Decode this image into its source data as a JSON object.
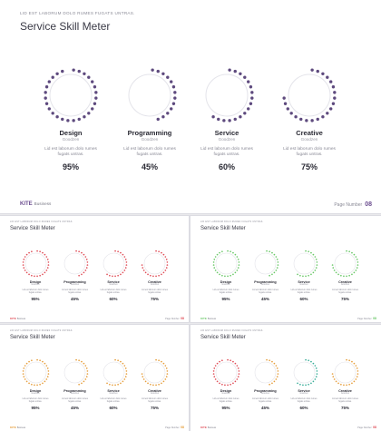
{
  "header": {
    "subtitle": "LID EST LABORUM DOLO RUMES FUGATS UNTRAS.",
    "title": "Service Skill Meter"
  },
  "footer": {
    "brand_primary": "KITE",
    "brand_secondary": "Business",
    "page_label": "Page Number",
    "page_number": "08"
  },
  "meters": [
    {
      "label": "Design",
      "sublabel": "Goodzen",
      "description": "Lid est laborum dolo rumes\nfugats untras.",
      "percent_text": "95%",
      "value": 0.95
    },
    {
      "label": "Programming",
      "sublabel": "Goodzen",
      "description": "Lid est laborum dolo rumes\nfugats untras.",
      "percent_text": "45%",
      "value": 0.45
    },
    {
      "label": "Service",
      "sublabel": "Goodzen",
      "description": "Lid est laborum dolo rumes\nfugats untras.",
      "percent_text": "60%",
      "value": 0.6
    },
    {
      "label": "Creative",
      "sublabel": "Goodzen",
      "description": "Lid est laborum dolo rumes\nfugats untras.",
      "percent_text": "75%",
      "value": 0.75
    }
  ],
  "variants": [
    {
      "theme": "purple",
      "brand_color": "#6b4d8f",
      "dot_colors": [
        "#5e4a7e",
        "#5e4a7e",
        "#5e4a7e",
        "#5e4a7e"
      ]
    },
    {
      "theme": "red",
      "brand_color": "#e0505a",
      "dot_colors": [
        "#e0505a",
        "#e0505a",
        "#e0505a",
        "#e0505a"
      ]
    },
    {
      "theme": "green",
      "brand_color": "#6cc86a",
      "dot_colors": [
        "#6cc86a",
        "#6cc86a",
        "#6cc86a",
        "#6cc86a"
      ]
    },
    {
      "theme": "orange",
      "brand_color": "#e6a040",
      "dot_colors": [
        "#e6a040",
        "#e6a040",
        "#e6a040",
        "#e6a040"
      ]
    },
    {
      "theme": "mixed",
      "brand_color": "#e0505a",
      "dot_colors": [
        "#e0505a",
        "#e6a040",
        "#3dae9a",
        "#e6a040"
      ]
    }
  ],
  "colors": {
    "ring": "#e4e4ea"
  }
}
